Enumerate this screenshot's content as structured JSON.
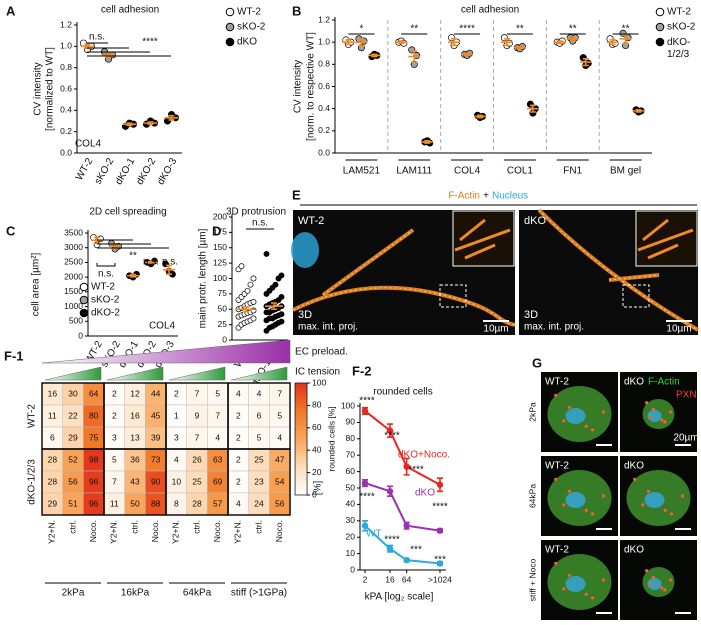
{
  "chart_data": [
    {
      "type": "dot",
      "panel": "A",
      "title": "cell adhesion",
      "ylabel": [
        "CV intensity",
        "[normalized to WT]"
      ],
      "categories": [
        "WT-2",
        "sKO-2",
        "dKO-1",
        "dKO-2",
        "dKO-3"
      ],
      "colors": [
        "#ffffff",
        "#a0a0a0",
        "#000000",
        "#000000",
        "#000000"
      ],
      "values": [
        1.0,
        0.92,
        0.27,
        0.28,
        0.33
      ],
      "errors": [
        0.02,
        0.02,
        0.01,
        0.01,
        0.02
      ],
      "points": [
        [
          1.03,
          0.97,
          1.0
        ],
        [
          0.95,
          0.88,
          0.92
        ],
        [
          0.25,
          0.28,
          0.27
        ],
        [
          0.27,
          0.3,
          0.28
        ],
        [
          0.3,
          0.36,
          0.33
        ]
      ],
      "ylim": [
        0,
        1.2
      ],
      "yticks": [
        {
          "value": 0,
          "label": "0.0"
        },
        0.2,
        0.4,
        0.6,
        0.8,
        {
          "value": 1,
          "label": "1.0"
        },
        1.2
      ],
      "legend": [
        {
          "name": "WT-2",
          "color": "#ffffff"
        },
        {
          "name": "sKO-2",
          "color": "#a0a0a0"
        },
        {
          "name": "dKO",
          "color": "#000000"
        }
      ],
      "annotations": [
        "n.s.",
        "****",
        "COL4"
      ]
    },
    {
      "type": "grouped_dot",
      "panel": "B",
      "title": "cell adhesion",
      "ylabel": [
        "CV intensity",
        "[norm. to respective WT]"
      ],
      "categories": [
        "LAM521",
        "LAM111",
        "COL4",
        "COL1",
        "FN1",
        "BM gel"
      ],
      "series": [
        {
          "name": "WT-2",
          "color": "#ffffff",
          "values": [
            1,
            1,
            1,
            1,
            1,
            1
          ],
          "errors": [
            0.02,
            0.01,
            0.03,
            0.03,
            0.01,
            0.02
          ],
          "points": [
            [
              1.02,
              0.98,
              1.0
            ],
            [
              1.0,
              1.01,
              0.99
            ],
            [
              1.04,
              0.97,
              1.0
            ],
            [
              1.04,
              0.97,
              0.99
            ],
            [
              1.0,
              0.99,
              1.01
            ],
            [
              1.03,
              0.98,
              0.99
            ]
          ]
        },
        {
          "name": "sKO-2",
          "color": "#a0a0a0",
          "values": [
            1.0,
            0.87,
            0.89,
            0.95,
            1.03,
            1.03
          ],
          "errors": [
            0.03,
            0.05,
            0.01,
            0.01,
            0.02,
            0.04
          ],
          "points": [
            [
              1.03,
              0.95,
              1.01
            ],
            [
              0.93,
              0.8,
              0.88
            ],
            [
              0.89,
              0.88,
              0.9
            ],
            [
              0.95,
              0.94,
              0.96
            ],
            [
              1.04,
              1.01,
              1.04
            ],
            [
              1.08,
              0.97,
              1.04
            ]
          ]
        },
        {
          "name": "dKO-1/2/3",
          "color": "#000000",
          "values": [
            0.88,
            0.1,
            0.33,
            0.4,
            0.82,
            0.38
          ],
          "errors": [
            0.01,
            0.01,
            0.01,
            0.03,
            0.03,
            0.01
          ],
          "points": [
            [
              0.87,
              0.89,
              0.88
            ],
            [
              0.1,
              0.11,
              0.09
            ],
            [
              0.34,
              0.32,
              0.33
            ],
            [
              0.44,
              0.36,
              0.4
            ],
            [
              0.86,
              0.79,
              0.81
            ],
            [
              0.39,
              0.37,
              0.38
            ]
          ]
        }
      ],
      "ylim": [
        0,
        1.2
      ],
      "yticks": [
        {
          "value": 0,
          "label": "0.0"
        },
        0.2,
        0.4,
        0.6,
        0.8,
        {
          "value": 1,
          "label": "1.0"
        },
        1.2
      ],
      "annotations": [
        "*",
        "**",
        "****",
        "**",
        "**",
        "**"
      ]
    },
    {
      "type": "dot",
      "panel": "C",
      "title": "2D cell spreading",
      "ylabel": [
        "cell area [µm²]"
      ],
      "categories": [
        "WT-2",
        "sKO-2",
        "dKO-1",
        "dKO-2",
        "dKO-3"
      ],
      "colors": [
        "#ffffff",
        "#a0a0a0",
        "#000000",
        "#000000",
        "#000000"
      ],
      "values": [
        3250,
        3050,
        2050,
        2500,
        2250
      ],
      "errors": [
        100,
        80,
        40,
        30,
        150
      ],
      "points": [
        [
          3350,
          3100,
          3300
        ],
        [
          3150,
          2950,
          3050
        ],
        [
          2050,
          2000,
          2100
        ],
        [
          2500,
          2450,
          2550
        ],
        [
          2450,
          2200,
          2100
        ]
      ],
      "ylim": [
        0,
        3500
      ],
      "yticks": [
        0,
        500,
        1000,
        1500,
        2000,
        2500,
        3000,
        3500
      ],
      "legend": [
        {
          "name": "WT-2",
          "color": "#ffffff"
        },
        {
          "name": "sKO-2",
          "color": "#a0a0a0"
        },
        {
          "name": "dKO-2",
          "color": "#000000"
        }
      ],
      "annotations": [
        "n.s.",
        "**",
        "n.s.",
        "n.s.",
        "COL4"
      ]
    },
    {
      "type": "dot",
      "panel": "D",
      "title": "3D protrusion",
      "ylabel": [
        "main protr. length [µm]"
      ],
      "categories": [
        "WT-2",
        "dKO-1/2/3"
      ],
      "colors": [
        "#ffffff",
        "#000000"
      ],
      "values": [
        50,
        55
      ],
      "errors": [
        4,
        5
      ],
      "points": [
        [
          20,
          25,
          28,
          30,
          32,
          35,
          38,
          40,
          42,
          44,
          45,
          48,
          50,
          52,
          55,
          58,
          60,
          62,
          65,
          70,
          75,
          80,
          90,
          100,
          115,
          120
        ],
        [
          15,
          20,
          22,
          25,
          28,
          30,
          32,
          35,
          35,
          38,
          40,
          42,
          45,
          45,
          48,
          50,
          52,
          55,
          55,
          58,
          60,
          62,
          65,
          70,
          75,
          80,
          85,
          90,
          100,
          105,
          140
        ]
      ],
      "ylim": [
        0,
        200
      ],
      "yticks": [
        0,
        25,
        50,
        75,
        100,
        125,
        150,
        175,
        200
      ],
      "annotations": [
        "n.s."
      ]
    },
    {
      "type": "heatmap",
      "panel": "F-1",
      "top_labels": [
        "EC preload.",
        "IC tension"
      ],
      "groups": [
        "2kPa",
        "16kPa",
        "64kPa",
        "stiff (>1GPa)"
      ],
      "col_labels": [
        "Y2+N.",
        "ctrl.",
        "Noco."
      ],
      "row_groups": [
        "WT-2",
        "dKO-1/2/3"
      ],
      "values": [
        [
          16,
          30,
          64,
          2,
          12,
          44,
          2,
          7,
          5,
          4,
          4,
          7
        ],
        [
          11,
          22,
          80,
          2,
          16,
          45,
          1,
          9,
          7,
          2,
          6,
          5
        ],
        [
          6,
          29,
          75,
          3,
          13,
          39,
          3,
          7,
          4,
          2,
          5,
          4
        ],
        [
          28,
          52,
          98,
          5,
          36,
          73,
          4,
          26,
          63,
          2,
          25,
          47
        ],
        [
          28,
          56,
          96,
          7,
          43,
          90,
          10,
          25,
          69,
          2,
          23,
          54
        ],
        [
          29,
          51,
          96,
          11,
          50,
          88,
          8,
          28,
          57,
          4,
          24,
          56
        ]
      ],
      "clim": [
        0,
        100
      ],
      "cticks": [
        0,
        20,
        40,
        60,
        80,
        100
      ],
      "colorbar_label": "rounded cells [%]"
    },
    {
      "type": "line",
      "panel": "F-2",
      "title": "rounded cells",
      "ylabel": [
        "[%]"
      ],
      "xlabel": "kPA [log₂ scale]",
      "x": [
        2,
        16,
        64,
        1024
      ],
      "xlog": 2,
      "series": [
        {
          "name": "dKO+Noco.",
          "color": "#e8261f",
          "values": [
            97,
            85,
            63,
            52
          ],
          "errors": [
            2,
            4,
            5,
            4
          ]
        },
        {
          "name": "dKO",
          "color": "#9b30b0",
          "values": [
            53,
            48,
            27,
            24
          ],
          "errors": [
            2,
            3,
            2,
            1
          ]
        },
        {
          "name": "WT",
          "color": "#2aa8e0",
          "values": [
            27,
            13,
            6,
            4
          ],
          "errors": [
            3,
            2,
            1,
            1
          ]
        }
      ],
      "xlim": [
        1.32,
        1690
      ],
      "xticks": [
        2,
        16,
        64,
        {
          "value": 1024,
          "label": ">1024"
        }
      ],
      "ylim": [
        0,
        100
      ],
      "yticks": [
        0,
        10,
        20,
        30,
        40,
        50,
        60,
        70,
        80,
        90,
        100
      ],
      "annotations": [
        "****",
        "****",
        "****",
        "****",
        "****",
        "****",
        "***",
        "***"
      ]
    }
  ],
  "images": {
    "E": {
      "panel": "E",
      "title": [
        "F-Actin",
        "+",
        "Nucleus"
      ],
      "tiles": [
        {
          "label": "WT-2",
          "corner": [
            "3D",
            "max. int. proj."
          ],
          "scale": "10µm"
        },
        {
          "label": "dKO",
          "corner": [
            "3D",
            "max. int. proj."
          ],
          "scale": "10µm"
        }
      ]
    },
    "G": {
      "panel": "G",
      "channels": [
        "F-Actin",
        "PXN"
      ],
      "rows": [
        "2kPa",
        "64kPa",
        "stiff + Noco"
      ],
      "tiles": [
        [
          "WT-2",
          "dKO"
        ],
        [
          "WT-2",
          "dKO"
        ],
        [
          "WT-2",
          "dKO"
        ]
      ],
      "scale": "20µm"
    }
  }
}
